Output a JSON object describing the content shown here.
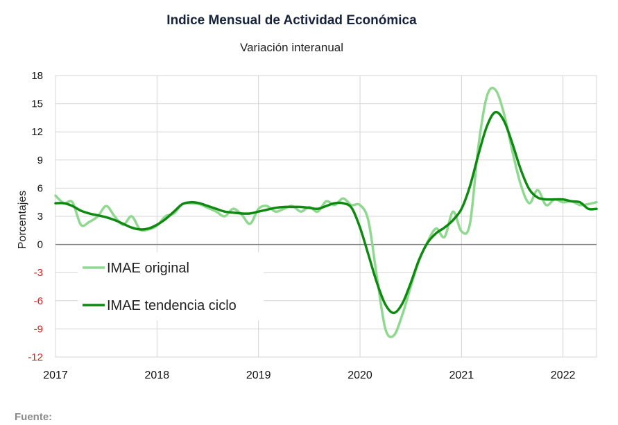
{
  "title": "Indice Mensual de  Actividad Económica",
  "subtitle": "Variación interanual",
  "footer": "Fuente:",
  "colors": {
    "original": "#8fd88f",
    "trend": "#0f8a10",
    "negative_tick": "#d21f1f",
    "positive_tick": "#111111",
    "grid": "#d4d4d4",
    "zero_line": "#7f7f7f"
  },
  "chart_data": {
    "type": "line",
    "title": "Indice Mensual de  Actividad Económica",
    "subtitle": "Variación interanual",
    "xlabel": "",
    "ylabel": "Porcentajes",
    "ylim": [
      -12,
      18
    ],
    "yticks": [
      18,
      15,
      12,
      9,
      6,
      3,
      0,
      -3,
      -6,
      -9,
      -12
    ],
    "ytick_labels": [
      "18",
      "15",
      "12",
      "9",
      "6",
      "3",
      "0",
      "-3",
      "-6",
      "-9",
      "-12"
    ],
    "xlim": [
      2017,
      2022.33
    ],
    "xticks": [
      2017,
      2018,
      2019,
      2020,
      2021,
      2022
    ],
    "xtick_labels": [
      "2017",
      "2018",
      "2019",
      "2020",
      "2021",
      "2022"
    ],
    "grid": true,
    "legend_position": "lower-left",
    "series": [
      {
        "name": "IMAE original",
        "color": "#8fd88f",
        "x": [
          2017.0,
          2017.083,
          2017.167,
          2017.25,
          2017.333,
          2017.417,
          2017.5,
          2017.583,
          2017.667,
          2017.75,
          2017.833,
          2017.917,
          2018.0,
          2018.083,
          2018.167,
          2018.25,
          2018.333,
          2018.417,
          2018.5,
          2018.583,
          2018.667,
          2018.75,
          2018.833,
          2018.917,
          2019.0,
          2019.083,
          2019.167,
          2019.25,
          2019.333,
          2019.417,
          2019.5,
          2019.583,
          2019.667,
          2019.75,
          2019.833,
          2019.917,
          2020.0,
          2020.083,
          2020.167,
          2020.25,
          2020.333,
          2020.417,
          2020.5,
          2020.583,
          2020.667,
          2020.75,
          2020.833,
          2020.917,
          2021.0,
          2021.083,
          2021.167,
          2021.25,
          2021.333,
          2021.417,
          2021.5,
          2021.583,
          2021.667,
          2021.75,
          2021.833,
          2021.917,
          2022.0,
          2022.083,
          2022.167,
          2022.25,
          2022.33
        ],
        "values": [
          5.2,
          4.4,
          4.5,
          2.1,
          2.4,
          3.0,
          4.1,
          3.0,
          2.1,
          3.0,
          1.6,
          1.6,
          2.0,
          3.0,
          3.3,
          4.3,
          4.4,
          4.3,
          3.9,
          3.5,
          3.0,
          3.8,
          3.2,
          2.2,
          3.8,
          4.1,
          3.5,
          3.8,
          4.1,
          3.5,
          4.0,
          3.5,
          4.6,
          4.2,
          4.9,
          4.2,
          4.2,
          2.5,
          -3.5,
          -9.0,
          -9.7,
          -7.5,
          -4.5,
          -1.7,
          0.3,
          1.7,
          0.8,
          3.5,
          1.4,
          2.2,
          10.5,
          15.8,
          16.5,
          14.0,
          10.0,
          6.4,
          4.4,
          5.8,
          4.2,
          4.8,
          4.5,
          4.6,
          4.2,
          4.3,
          4.5
        ]
      },
      {
        "name": "IMAE tendencia ciclo",
        "color": "#0f8a10",
        "x": [
          2017.0,
          2017.083,
          2017.167,
          2017.25,
          2017.333,
          2017.417,
          2017.5,
          2017.583,
          2017.667,
          2017.75,
          2017.833,
          2017.917,
          2018.0,
          2018.083,
          2018.167,
          2018.25,
          2018.333,
          2018.417,
          2018.5,
          2018.583,
          2018.667,
          2018.75,
          2018.833,
          2018.917,
          2019.0,
          2019.083,
          2019.167,
          2019.25,
          2019.333,
          2019.417,
          2019.5,
          2019.583,
          2019.667,
          2019.75,
          2019.833,
          2019.917,
          2020.0,
          2020.083,
          2020.167,
          2020.25,
          2020.333,
          2020.417,
          2020.5,
          2020.583,
          2020.667,
          2020.75,
          2020.833,
          2020.917,
          2021.0,
          2021.083,
          2021.167,
          2021.25,
          2021.333,
          2021.417,
          2021.5,
          2021.583,
          2021.667,
          2021.75,
          2021.833,
          2021.917,
          2022.0,
          2022.083,
          2022.167,
          2022.25,
          2022.33
        ],
        "values": [
          4.4,
          4.4,
          4.1,
          3.6,
          3.3,
          3.1,
          2.9,
          2.6,
          2.2,
          1.8,
          1.6,
          1.7,
          2.1,
          2.7,
          3.5,
          4.3,
          4.5,
          4.4,
          4.1,
          3.8,
          3.5,
          3.4,
          3.3,
          3.3,
          3.5,
          3.7,
          3.9,
          4.0,
          4.0,
          4.0,
          3.9,
          3.8,
          4.1,
          4.4,
          4.4,
          3.9,
          1.8,
          -1.1,
          -4.1,
          -6.4,
          -7.3,
          -6.3,
          -4.1,
          -1.6,
          0.2,
          1.2,
          1.8,
          2.6,
          3.8,
          6.2,
          9.6,
          12.6,
          14.1,
          13.2,
          10.8,
          8.0,
          5.9,
          5.0,
          4.8,
          4.8,
          4.8,
          4.6,
          4.5,
          3.8,
          3.8
        ]
      }
    ]
  }
}
